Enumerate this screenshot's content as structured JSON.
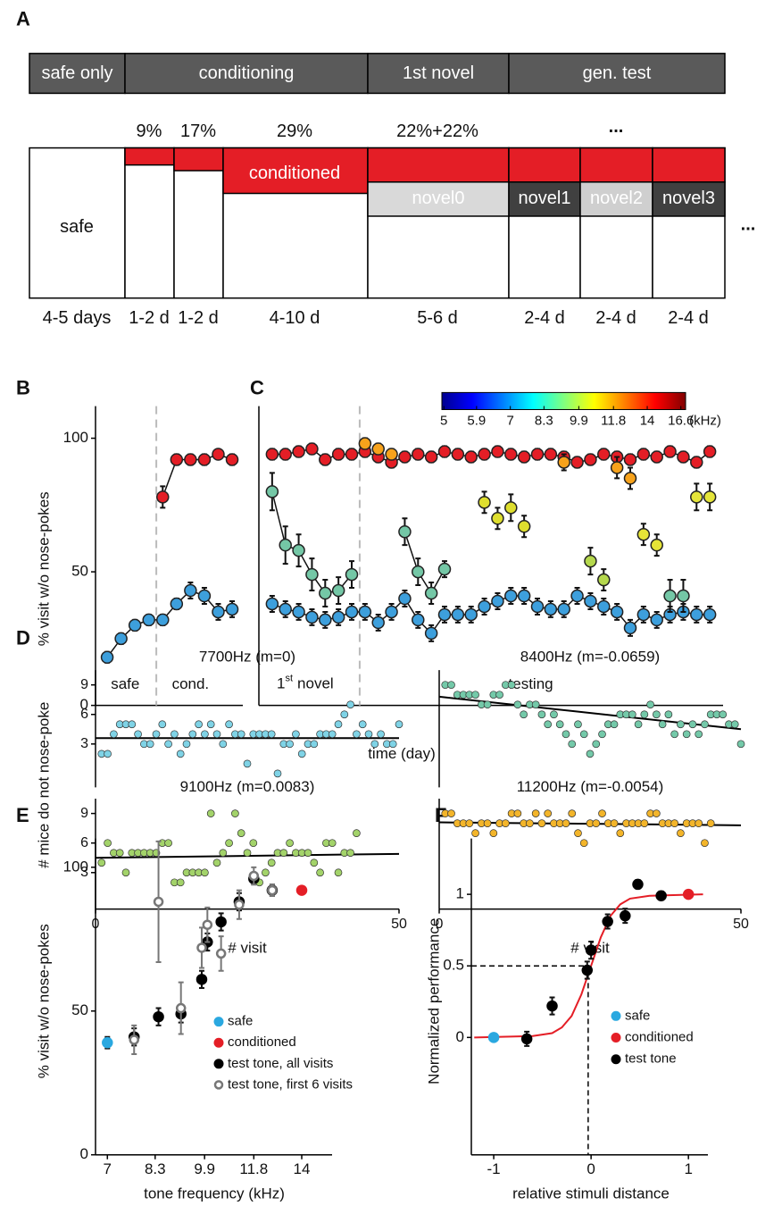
{
  "panel_labels": [
    "A",
    "B",
    "C",
    "D",
    "E",
    "F"
  ],
  "schematic": {
    "phases": [
      "safe only",
      "conditioning",
      "1st novel",
      "gen. test"
    ],
    "percents": [
      "9%",
      "17%",
      "29%",
      "22%+22%",
      "..."
    ],
    "blocks": [
      "safe",
      "conditioned",
      "novel0",
      "novel1",
      "novel2",
      "novel3"
    ],
    "more": "...",
    "durations": [
      "4-5 days",
      "1-2 d",
      "1-2 d",
      "4-10 d",
      "5-6 d",
      "2-4 d",
      "2-4 d",
      "2-4 d"
    ]
  },
  "chart_data": [
    {
      "type": "line",
      "ylabel": "% visit w/o nose-pokes",
      "xlim": [
        0.16,
        10.77
      ],
      "ylim": [
        0,
        112
      ],
      "yticks": [
        0,
        50,
        100
      ],
      "divider": 4.54,
      "annotations": [
        "safe",
        "cond."
      ],
      "series": [
        {
          "color": "#3d9fdc",
          "line": true,
          "x": [
            1,
            2,
            3,
            4,
            5,
            6,
            7,
            8,
            9,
            10
          ],
          "values": [
            18,
            25,
            30,
            32,
            32,
            38,
            43,
            41,
            35,
            36
          ],
          "errors": [
            2,
            2,
            2,
            2,
            2,
            2,
            3,
            3,
            3,
            3
          ]
        },
        {
          "color": "#e41e26",
          "line": true,
          "x": [
            5,
            6,
            7,
            8,
            9,
            10
          ],
          "values": [
            78,
            92,
            92,
            92,
            94,
            92
          ],
          "errors": [
            4,
            2,
            2,
            2,
            1,
            2
          ]
        }
      ]
    },
    {
      "type": "line",
      "xlabel": "time (day)",
      "xlim": [
        0,
        35
      ],
      "ylim": [
        0,
        112
      ],
      "divider": 7.6,
      "annotations": [
        "1",
        "st",
        "novel",
        "testing"
      ],
      "colorbar": {
        "ticks": [
          5,
          5.9,
          7,
          8.3,
          9.9,
          11.8,
          14,
          16.6
        ],
        "lim": [
          4.95,
          17
        ],
        "unit": "(kHz)"
      },
      "series": [
        {
          "color": "#e41e26",
          "line": true,
          "x": [
            1,
            2,
            3,
            4,
            5,
            6,
            7,
            8,
            9,
            10,
            11,
            12,
            13,
            14,
            15,
            16,
            17,
            18,
            19,
            20,
            21,
            22,
            23,
            24,
            25,
            26,
            27,
            28,
            29,
            30,
            31,
            32,
            33,
            34
          ],
          "values": [
            94,
            94,
            95,
            96,
            92,
            94,
            94,
            95,
            93,
            91,
            93,
            94,
            93,
            95,
            94,
            93,
            94,
            95,
            94,
            93,
            94,
            94,
            93,
            91,
            92,
            94,
            93,
            92,
            94,
            93,
            95,
            93,
            91,
            95
          ],
          "errors": [
            2,
            2,
            2,
            2,
            2,
            2,
            2,
            2,
            2,
            2,
            2,
            2,
            2,
            2,
            2,
            2,
            2,
            2,
            2,
            2,
            2,
            2,
            2,
            2,
            2,
            2,
            2,
            2,
            2,
            2,
            2,
            2,
            2,
            2
          ]
        },
        {
          "color": "#3d9fdc",
          "line": true,
          "x": [
            1,
            2,
            3,
            4,
            5,
            6,
            7,
            8,
            9,
            10,
            11,
            12,
            13,
            14,
            15,
            16,
            17,
            18,
            19,
            20,
            21,
            22,
            23,
            24,
            25,
            26,
            27,
            28,
            29,
            30,
            31,
            32,
            33,
            34
          ],
          "values": [
            38,
            36,
            35,
            33,
            32,
            33,
            35,
            35,
            31,
            35,
            40,
            32,
            27,
            34,
            34,
            34,
            37,
            39,
            41,
            41,
            37,
            36,
            36,
            41,
            39,
            37,
            35,
            29,
            34,
            32,
            34,
            35,
            34,
            34
          ],
          "errors": [
            3,
            3,
            3,
            3,
            3,
            3,
            3,
            3,
            3,
            3,
            3,
            3,
            3,
            3,
            3,
            3,
            3,
            3,
            3,
            3,
            3,
            3,
            3,
            3,
            3,
            3,
            3,
            3,
            3,
            3,
            3,
            3,
            3,
            3
          ]
        },
        {
          "color": "#f7a21b",
          "line": false,
          "x": [
            8,
            9,
            10,
            23,
            27,
            28
          ],
          "values": [
            98,
            96,
            94,
            91,
            89,
            85
          ],
          "errors": [
            2,
            2,
            2,
            3,
            4,
            4
          ]
        },
        {
          "color": "#74c7a6",
          "line": true,
          "x": [
            1,
            2,
            3,
            4,
            5,
            6,
            7
          ],
          "values": [
            80,
            60,
            58,
            49,
            42,
            43,
            49
          ],
          "errors": [
            7,
            7,
            6,
            6,
            5,
            5,
            5
          ]
        },
        {
          "color": "#74c7a6",
          "line": true,
          "x": [
            11,
            12,
            13,
            14
          ],
          "values": [
            65,
            50,
            42,
            51
          ],
          "errors": [
            5,
            5,
            4,
            3
          ]
        },
        {
          "color": "#dede2e",
          "line": false,
          "x": [
            17,
            18,
            19,
            20
          ],
          "values": [
            76,
            70,
            74,
            67
          ],
          "errors": [
            4,
            4,
            5,
            4
          ]
        },
        {
          "color": "#b5d84d",
          "line": false,
          "x": [
            25,
            26
          ],
          "values": [
            54,
            47
          ],
          "errors": [
            5,
            4
          ]
        },
        {
          "color": "#e6e437",
          "line": false,
          "x": [
            29,
            30
          ],
          "values": [
            64,
            60
          ],
          "errors": [
            4,
            4
          ]
        },
        {
          "color": "#74c7a6",
          "line": false,
          "x": [
            31,
            32
          ],
          "values": [
            41,
            41
          ],
          "errors": [
            6,
            6
          ]
        },
        {
          "color": "#e5e53a",
          "line": false,
          "x": [
            33,
            34
          ],
          "values": [
            78,
            78
          ],
          "errors": [
            5,
            5
          ]
        }
      ]
    },
    {
      "type": "scatter",
      "title": "7700Hz (m=0)",
      "ylabel": "# mice do not nose-poke",
      "color": "#7fd3e6",
      "xlim": [
        0,
        50
      ],
      "ylim": [
        -1.4,
        10.5
      ],
      "yticks": [
        3,
        6,
        9
      ],
      "x": [
        1,
        2,
        3,
        4,
        5,
        6,
        7,
        8,
        9,
        10,
        11,
        12,
        13,
        14,
        15,
        16,
        17,
        18,
        19,
        20,
        21,
        22,
        23,
        24,
        25,
        26,
        27,
        28,
        29,
        30,
        31,
        32,
        33,
        34,
        35,
        36,
        37,
        38,
        39,
        40,
        41,
        42,
        43,
        44,
        45,
        46,
        47,
        48,
        49,
        50
      ],
      "values": [
        2,
        2,
        4,
        5,
        5,
        5,
        4,
        3,
        3,
        4,
        5,
        3,
        4,
        2,
        3,
        4,
        5,
        4,
        5,
        4,
        3,
        5,
        4,
        4,
        1,
        4,
        4,
        4,
        4,
        0,
        3,
        3,
        4,
        2,
        3,
        3,
        4,
        4,
        4,
        5,
        6,
        7,
        4,
        5,
        4,
        3,
        4,
        3,
        3,
        5
      ],
      "fit": {
        "color": "#000000",
        "x": [
          0,
          50
        ],
        "values": [
          3.6,
          3.6
        ]
      }
    },
    {
      "type": "scatter",
      "title": "8400Hz (m=-0.0659)",
      "color": "#74c9a9",
      "xlim": [
        0,
        50
      ],
      "ylim": [
        -1.4,
        10.5
      ],
      "x": [
        1,
        2,
        3,
        4,
        5,
        6,
        7,
        8,
        9,
        10,
        11,
        12,
        13,
        14,
        15,
        16,
        17,
        18,
        19,
        20,
        21,
        22,
        23,
        24,
        25,
        26,
        27,
        28,
        29,
        30,
        31,
        32,
        33,
        34,
        35,
        36,
        37,
        38,
        39,
        40,
        41,
        42,
        43,
        44,
        45,
        46,
        47,
        48,
        49,
        50
      ],
      "values": [
        9,
        9,
        8,
        8,
        8,
        8,
        7,
        7,
        8,
        8,
        9,
        9,
        7,
        6,
        7,
        7,
        6,
        5,
        6,
        5,
        4,
        3,
        5,
        4,
        2,
        3,
        4,
        5,
        5,
        6,
        6,
        6,
        5,
        6,
        7,
        6,
        5,
        6,
        4,
        5,
        4,
        5,
        4,
        5,
        6,
        6,
        6,
        5,
        5,
        3
      ],
      "fit": {
        "color": "#000000",
        "x": [
          0,
          50
        ],
        "values": [
          7.8,
          4.5
        ]
      }
    },
    {
      "type": "scatter",
      "title": "9100Hz (m=0.0083)",
      "xlabel": "# visit",
      "color": "#a3d36a",
      "xlim": [
        0,
        50
      ],
      "ylim": [
        -0.7,
        10.5
      ],
      "yticks": [
        3,
        6,
        9
      ],
      "xticks": [
        0,
        50
      ],
      "x": [
        1,
        2,
        3,
        4,
        5,
        6,
        7,
        8,
        9,
        10,
        11,
        12,
        13,
        14,
        15,
        16,
        17,
        18,
        19,
        20,
        21,
        22,
        23,
        24,
        25,
        26,
        27,
        28,
        29,
        30,
        31,
        32,
        33,
        34,
        35,
        36,
        37,
        38,
        39,
        40,
        41,
        42,
        43
      ],
      "values": [
        4,
        6,
        5,
        5,
        3,
        5,
        5,
        5,
        5,
        5,
        6,
        6,
        2,
        2,
        3,
        3,
        3,
        3,
        9,
        4,
        5,
        6,
        9,
        7,
        5,
        6,
        2,
        3,
        4,
        5,
        5,
        6,
        5,
        5,
        5,
        4,
        3,
        6,
        6,
        3,
        5,
        5,
        7
      ],
      "fit": {
        "color": "#000000",
        "x": [
          0,
          50
        ],
        "values": [
          4.5,
          4.9
        ]
      }
    },
    {
      "type": "scatter",
      "title": "11200Hz (m=-0.0054)",
      "xlabel": "# visit",
      "color": "#f3b52a",
      "xlim": [
        0,
        50
      ],
      "ylim": [
        -0.7,
        10.5
      ],
      "xticks": [
        0,
        50
      ],
      "x": [
        1,
        2,
        3,
        4,
        5,
        6,
        7,
        8,
        9,
        10,
        11,
        12,
        13,
        14,
        15,
        16,
        17,
        18,
        19,
        20,
        21,
        22,
        23,
        24,
        25,
        26,
        27,
        28,
        29,
        30,
        31,
        32,
        33,
        34,
        35,
        36,
        37,
        38,
        39,
        40,
        41,
        42,
        43,
        44,
        45
      ],
      "values": [
        9,
        9,
        8,
        8,
        8,
        7,
        8,
        8,
        7,
        8,
        8,
        9,
        9,
        8,
        8,
        9,
        8,
        9,
        8,
        8,
        8,
        9,
        7,
        6,
        8,
        8,
        9,
        8,
        8,
        7,
        8,
        8,
        8,
        8,
        9,
        9,
        8,
        8,
        8,
        7,
        8,
        8,
        8,
        6,
        8
      ],
      "fit": {
        "color": "#000000",
        "x": [
          0,
          50
        ],
        "values": [
          8.1,
          7.8
        ]
      }
    },
    {
      "type": "scatter",
      "xlabel": "tone frequency (kHz)",
      "ylabel": "% visit w/o nose-pokes",
      "xscale": "log",
      "xlim": [
        6.71,
        15.6
      ],
      "ylim": [
        0,
        110
      ],
      "xticks": [
        7,
        8.3,
        9.9,
        11.8,
        14
      ],
      "yticks": [
        0,
        50,
        100
      ],
      "series": [
        {
          "name": "safe",
          "color": "#2aa8e0",
          "x": [
            7
          ],
          "values": [
            39
          ],
          "errors": [
            2
          ]
        },
        {
          "name": "conditioned",
          "color": "#e41e26",
          "x": [
            14
          ],
          "values": [
            92
          ],
          "errors": [
            1
          ]
        },
        {
          "name": "test tone, all visits",
          "color": "#000000",
          "x": [
            7.7,
            8.4,
            9.1,
            9.8,
            10.0,
            10.5,
            11.2,
            11.8,
            12.6
          ],
          "values": [
            41,
            48,
            49,
            61,
            74,
            81,
            88,
            96,
            92
          ],
          "errors": [
            3,
            3,
            3,
            3,
            3,
            3,
            3,
            2,
            2
          ]
        },
        {
          "name": "test tone, first 6 visits",
          "color": "#777777",
          "marker": "open",
          "x": [
            7.7,
            8.4,
            9.1,
            9.8,
            10.0,
            10.5,
            11.2,
            11.8,
            12.6
          ],
          "values": [
            40,
            88,
            51,
            72,
            80,
            70,
            87,
            97,
            92
          ],
          "errors": [
            5,
            21,
            9,
            7,
            6,
            6,
            5,
            3,
            2
          ]
        }
      ]
    },
    {
      "type": "scatter",
      "xlabel": "relative stimuli distance",
      "ylabel": "Normalized performance",
      "xlim": [
        -1.23,
        1.2
      ],
      "ylim": [
        -0.82,
        1.39
      ],
      "xticks": [
        -1,
        0,
        1
      ],
      "yticks": [
        0,
        0.5,
        1
      ],
      "guide": [
        -0.03,
        0.5
      ],
      "fit": {
        "color": "#e41e26",
        "x": [
          -1.2,
          -0.6,
          -0.4,
          -0.3,
          -0.2,
          -0.1,
          0,
          0.1,
          0.2,
          0.3,
          0.4,
          0.6,
          1.15
        ],
        "values": [
          0,
          0.01,
          0.03,
          0.07,
          0.15,
          0.3,
          0.5,
          0.7,
          0.85,
          0.93,
          0.97,
          0.99,
          1.0
        ]
      },
      "series": [
        {
          "name": "safe",
          "color": "#2aa8e0",
          "x": [
            -1
          ],
          "values": [
            0
          ],
          "errors": [
            0.01
          ]
        },
        {
          "name": "conditioned",
          "color": "#e41e26",
          "x": [
            1
          ],
          "values": [
            1
          ],
          "errors": [
            0.01
          ]
        },
        {
          "name": "test tone",
          "color": "#000000",
          "x": [
            -0.66,
            -0.4,
            -0.04,
            0,
            0.17,
            0.35,
            0.48,
            0.72
          ],
          "values": [
            -0.01,
            0.22,
            0.47,
            0.61,
            0.81,
            0.85,
            1.07,
            0.99
          ],
          "errors": [
            0.05,
            0.06,
            0.06,
            0.06,
            0.05,
            0.05,
            0.03,
            0.03
          ]
        }
      ]
    }
  ]
}
